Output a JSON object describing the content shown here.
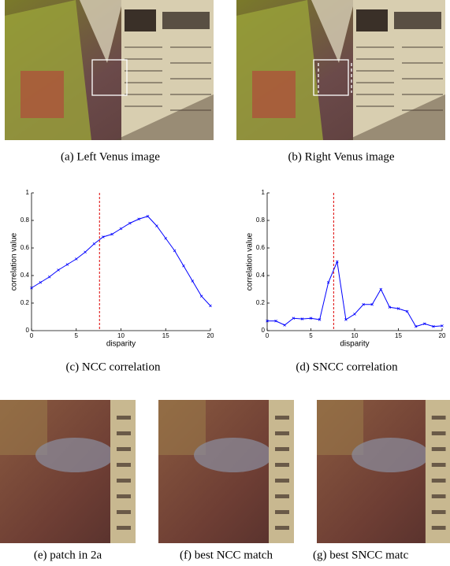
{
  "figure": {
    "captions": [
      "(a) Left Venus image",
      "(b) Right Venus image",
      "(e) patch in 2a",
      "(f) best NCC match",
      "(g) best SNCC matc"
    ]
  },
  "chart_data": [
    {
      "type": "line",
      "caption": "(c) NCC correlation",
      "xlabel": "disparity",
      "ylabel": "correlation value",
      "x": [
        0,
        1,
        2,
        3,
        4,
        5,
        6,
        7,
        8,
        9,
        10,
        11,
        12,
        13,
        14,
        15,
        16,
        17,
        18,
        19,
        20
      ],
      "series": [
        {
          "color": "#0000ff",
          "values": [
            0.31,
            0.35,
            0.39,
            0.44,
            0.48,
            0.52,
            0.57,
            0.63,
            0.68,
            0.7,
            0.74,
            0.78,
            0.81,
            0.83,
            0.76,
            0.67,
            0.58,
            0.47,
            0.36,
            0.25,
            0.18
          ]
        }
      ],
      "vline": 7.6,
      "vline_color": "#dd0000",
      "xlim": [
        0,
        20
      ],
      "xticks": [
        0,
        5,
        10,
        15,
        20
      ],
      "ylim": [
        0,
        1
      ],
      "yticks": [
        0,
        0.2,
        0.4,
        0.6,
        0.8,
        1
      ]
    },
    {
      "type": "line",
      "caption": "(d) SNCC correlation",
      "xlabel": "disparity",
      "ylabel": "correlation value",
      "x": [
        0,
        1,
        2,
        3,
        4,
        5,
        6,
        7,
        8,
        9,
        10,
        11,
        12,
        13,
        14,
        15,
        16,
        17,
        18,
        19,
        20
      ],
      "series": [
        {
          "color": "#0000ff",
          "values": [
            0.07,
            0.07,
            0.04,
            0.09,
            0.085,
            0.09,
            0.08,
            0.35,
            0.5,
            0.08,
            0.12,
            0.19,
            0.19,
            0.3,
            0.17,
            0.16,
            0.14,
            0.03,
            0.05,
            0.03,
            0.035
          ]
        }
      ],
      "vline": 7.6,
      "vline_color": "#dd0000",
      "xlim": [
        0,
        20
      ],
      "xticks": [
        0,
        5,
        10,
        15,
        20
      ],
      "ylim": [
        0,
        1
      ],
      "yticks": [
        0,
        0.2,
        0.4,
        0.6,
        0.8,
        1
      ]
    }
  ]
}
